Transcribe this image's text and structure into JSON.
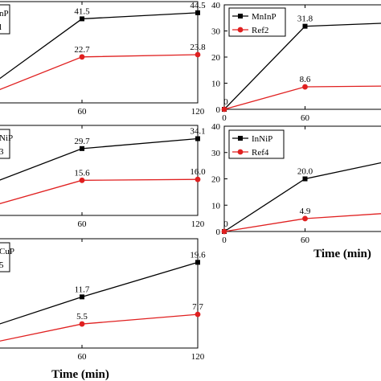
{
  "chart_data": [
    {
      "type": "line",
      "legend": [
        "…nP",
        "…l"
      ],
      "x": [
        0,
        60,
        120
      ],
      "xticks": [
        60,
        120
      ],
      "yticks": [],
      "ylim": [
        0,
        50
      ],
      "xlabel": "",
      "ylabel": "",
      "series": [
        {
          "name": "…nP",
          "color": "#000000",
          "marker": "square",
          "values": [
            0,
            41.5,
            44.5
          ],
          "labels": [
            "",
            "41.5",
            "44.5"
          ]
        },
        {
          "name": "…l",
          "color": "#e02020",
          "marker": "circle",
          "values": [
            0,
            22.7,
            23.8
          ],
          "labels": [
            "",
            "22.7",
            "23.8"
          ]
        }
      ]
    },
    {
      "type": "line",
      "legend": [
        "MnInP",
        "Ref2"
      ],
      "x": [
        0,
        60,
        120
      ],
      "xticks": [
        0,
        60
      ],
      "yticks": [
        0,
        10,
        20,
        30,
        40
      ],
      "ylim": [
        0,
        40
      ],
      "xlabel": "",
      "ylabel": "",
      "series": [
        {
          "name": "MnInP",
          "color": "#000000",
          "marker": "square",
          "values": [
            0,
            31.8,
            33.0
          ],
          "labels": [
            "0",
            "31.8",
            ""
          ]
        },
        {
          "name": "Ref2",
          "color": "#e02020",
          "marker": "circle",
          "values": [
            0,
            8.6,
            8.9
          ],
          "labels": [
            "",
            "8.6",
            ""
          ]
        }
      ]
    },
    {
      "type": "line",
      "legend": [
        "…NiP",
        "…3"
      ],
      "x": [
        0,
        60,
        120
      ],
      "xticks": [
        60,
        120
      ],
      "yticks": [],
      "ylim": [
        0,
        40
      ],
      "xlabel": "",
      "ylabel": "",
      "series": [
        {
          "name": "…NiP",
          "color": "#000000",
          "marker": "square",
          "values": [
            10,
            29.7,
            34.1
          ],
          "labels": [
            "",
            "29.7",
            "34.1"
          ]
        },
        {
          "name": "…3",
          "color": "#e02020",
          "marker": "circle",
          "values": [
            1,
            15.6,
            16.0
          ],
          "labels": [
            "",
            "15.6",
            "16.0"
          ]
        }
      ]
    },
    {
      "type": "line",
      "legend": [
        "InNiP",
        "Ref4"
      ],
      "x": [
        0,
        60,
        120
      ],
      "xticks": [
        0,
        60
      ],
      "yticks": [
        0,
        10,
        20,
        30,
        40
      ],
      "ylim": [
        0,
        40
      ],
      "xlabel": "Time (min)",
      "ylabel": "",
      "series": [
        {
          "name": "InNiP",
          "color": "#000000",
          "marker": "square",
          "values": [
            0,
            20.0,
            26.5
          ],
          "labels": [
            "0",
            "20.0",
            ""
          ]
        },
        {
          "name": "Ref4",
          "color": "#e02020",
          "marker": "circle",
          "values": [
            0,
            4.9,
            6.9
          ],
          "labels": [
            "",
            "4.9",
            ""
          ]
        }
      ]
    },
    {
      "type": "line",
      "legend": [
        "…CuP",
        "…5"
      ],
      "x": [
        0,
        60,
        120
      ],
      "xticks": [
        60,
        120
      ],
      "yticks": [],
      "ylim": [
        0,
        25
      ],
      "xlabel": "Time (min)",
      "ylabel": "",
      "series": [
        {
          "name": "…CuP",
          "color": "#000000",
          "marker": "square",
          "values": [
            3,
            11.7,
            19.6
          ],
          "labels": [
            "",
            "11.7",
            "19.6"
          ]
        },
        {
          "name": "…5",
          "color": "#e02020",
          "marker": "circle",
          "values": [
            0,
            5.5,
            7.7
          ],
          "labels": [
            "",
            "5.5",
            "7.7"
          ]
        }
      ]
    }
  ]
}
